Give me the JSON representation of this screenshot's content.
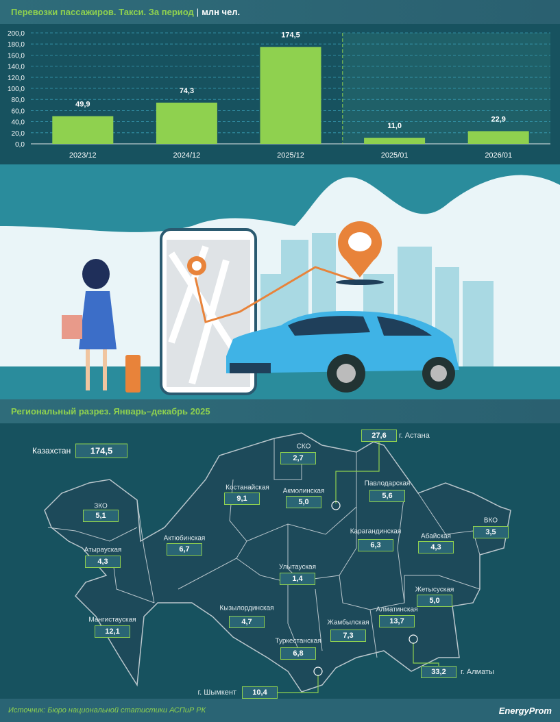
{
  "header": {
    "title": "Перевозки пассажиров. Такси. За период",
    "separator": "|",
    "unit": "млн чел."
  },
  "chart_data": {
    "type": "bar",
    "title": "Перевозки пассажиров. Такси. За период",
    "unit": "млн чел.",
    "categories": [
      "2023/12",
      "2024/12",
      "2025/12",
      "2025/01",
      "2026/01"
    ],
    "values": [
      49.9,
      74.3,
      174.5,
      11.0,
      22.9
    ],
    "labels": [
      "49,9",
      "74,3",
      "174,5",
      "11,0",
      "22,9"
    ],
    "ylim": [
      0,
      200
    ],
    "yticks": [
      "0,0",
      "20,0",
      "40,0",
      "60,0",
      "80,0",
      "100,0",
      "120,0",
      "140,0",
      "160,0",
      "180,0",
      "200,0"
    ],
    "grid": true,
    "bar_color": "#8fd14f",
    "divider_after_index": 2
  },
  "regional": {
    "title": "Региональный разрез. Январь–декабрь 2025",
    "total": {
      "label": "Казахстан",
      "value": "174,5"
    },
    "regions": [
      {
        "name": "СКО",
        "value": "2,7"
      },
      {
        "name": "Костанайская",
        "value": "9,1"
      },
      {
        "name": "Акмолинская",
        "value": "5,0"
      },
      {
        "name": "Павлодарская",
        "value": "5,6"
      },
      {
        "name": "ЗКО",
        "value": "5,1"
      },
      {
        "name": "ВКО",
        "value": "3,5"
      },
      {
        "name": "Актюбинская",
        "value": "6,7"
      },
      {
        "name": "Карагандинская",
        "value": "6,3"
      },
      {
        "name": "Абайская",
        "value": "4,3"
      },
      {
        "name": "Атырауская",
        "value": "4,3"
      },
      {
        "name": "Улытауская",
        "value": "1,4"
      },
      {
        "name": "Жетысуская",
        "value": "5,0"
      },
      {
        "name": "Кызылординская",
        "value": "4,7"
      },
      {
        "name": "Алматинская",
        "value": "13,7"
      },
      {
        "name": "Мангистауская",
        "value": "12,1"
      },
      {
        "name": "Жамбылская",
        "value": "7,3"
      },
      {
        "name": "Туркестанская",
        "value": "6,8"
      }
    ],
    "cities": [
      {
        "name": "г. Астана",
        "value": "27,6"
      },
      {
        "name": "г. Алматы",
        "value": "33,2"
      },
      {
        "name": "г. Шымкент",
        "value": "10,4"
      }
    ]
  },
  "footer": {
    "source": "Источник: Бюро национальной статистики АСПиР РК",
    "logo": "EnergyProm"
  },
  "colors": {
    "accent": "#8fd14f",
    "background": "#17525f",
    "header": "#2f6c7a"
  }
}
